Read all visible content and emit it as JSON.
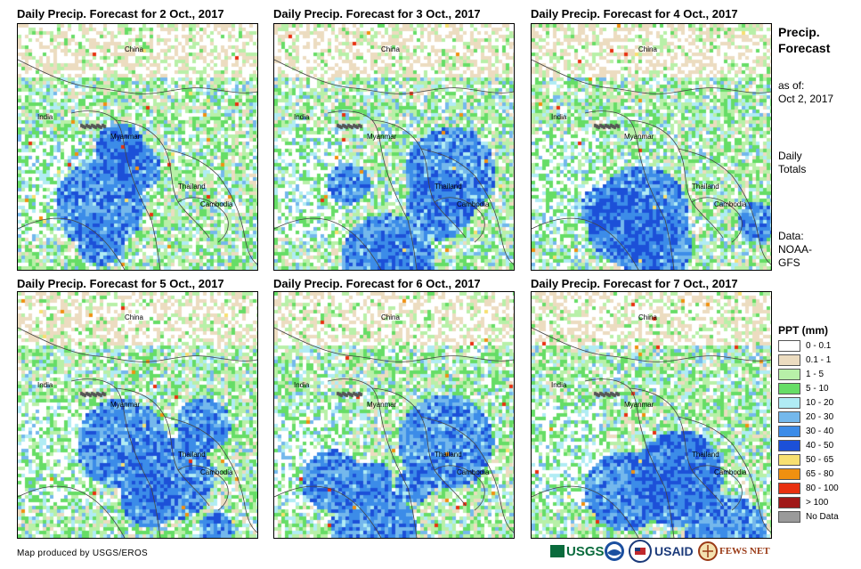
{
  "panels": [
    {
      "title": "Daily Precip. Forecast for 2 Oct., 2017"
    },
    {
      "title": "Daily Precip. Forecast for 3 Oct., 2017"
    },
    {
      "title": "Daily Precip. Forecast for 4 Oct., 2017"
    },
    {
      "title": "Daily Precip. Forecast for 5 Oct., 2017"
    },
    {
      "title": "Daily Precip. Forecast for 6 Oct., 2017"
    },
    {
      "title": "Daily Precip. Forecast for 7 Oct., 2017"
    }
  ],
  "map_labels": {
    "china": "China",
    "india": "India",
    "myanmar": "Myanmar",
    "thailand": "Thailand",
    "cambodia": "Cambodia"
  },
  "side": {
    "title_line1": "Precip.",
    "title_line2": "Forecast",
    "asof_line1": "as of:",
    "asof_line2": "Oct 2, 2017",
    "daily_line1": "Daily",
    "daily_line2": "Totals",
    "data_line1": "Data:",
    "data_line2": "NOAA-",
    "data_line3": "GFS"
  },
  "legend": {
    "title": "PPT (mm)",
    "items": [
      {
        "label": "0 - 0.1",
        "color": "#ffffff"
      },
      {
        "label": "0.1 - 1",
        "color": "#ecdcc0"
      },
      {
        "label": "1 - 5",
        "color": "#b8f0a8"
      },
      {
        "label": "5 - 10",
        "color": "#66dd66"
      },
      {
        "label": "10 - 20",
        "color": "#b0ecf4"
      },
      {
        "label": "20 - 30",
        "color": "#74b8ec"
      },
      {
        "label": "30 - 40",
        "color": "#3c8ce8"
      },
      {
        "label": "40 - 50",
        "color": "#1c50d8"
      },
      {
        "label": "50 - 65",
        "color": "#f8e070"
      },
      {
        "label": "65 - 80",
        "color": "#f09010"
      },
      {
        "label": "80 - 100",
        "color": "#e83010"
      },
      {
        "label": "> 100",
        "color": "#a01818"
      },
      {
        "label": "No Data",
        "color": "#9a9a9a"
      }
    ]
  },
  "footer": "Map produced by USGS/EROS",
  "logos": {
    "usgs": "USGS",
    "usaid": "USAID",
    "fewsnet": "FEWS NET"
  }
}
